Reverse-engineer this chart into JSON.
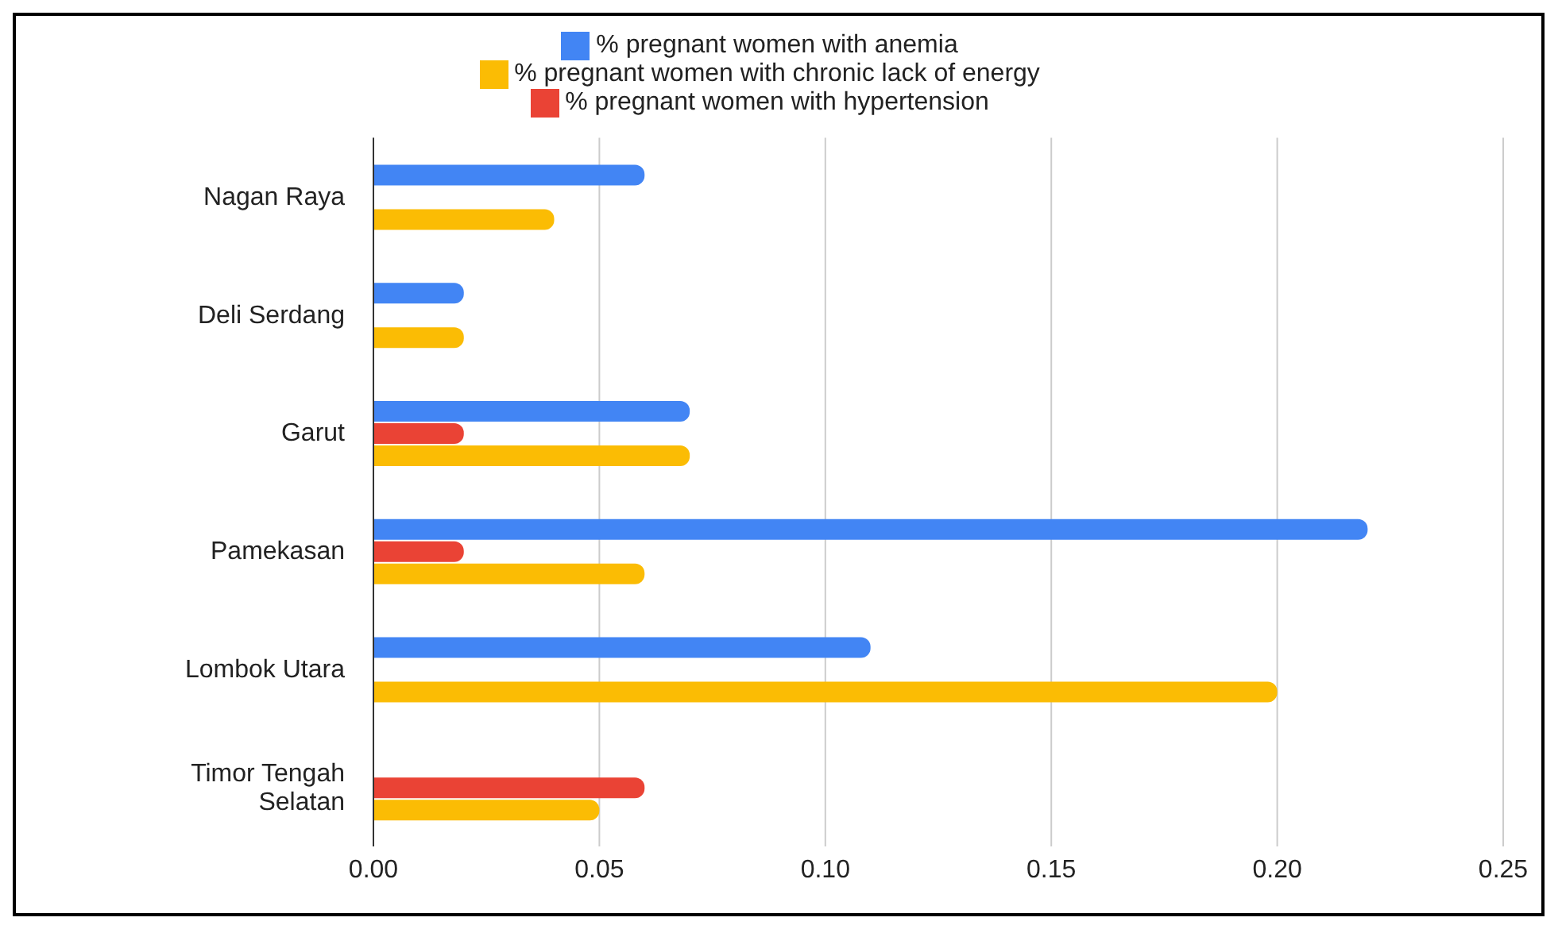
{
  "chart_data": {
    "type": "bar",
    "orientation": "horizontal",
    "categories": [
      "Nagan Raya",
      "Deli Serdang",
      "Garut",
      "Pamekasan",
      "Lombok Utara",
      "Timor Tengah Selatan"
    ],
    "series": [
      {
        "name": "% pregnant women with anemia",
        "color": "#4285f4",
        "values": [
          0.06,
          0.02,
          0.07,
          0.22,
          0.11,
          null
        ]
      },
      {
        "name": "% pregnant women with hypertension",
        "color": "#ea4335",
        "values": [
          null,
          null,
          0.02,
          0.02,
          null,
          0.06
        ]
      },
      {
        "name": "% pregnant women with chronic lack of energy",
        "color": "#fbbc04",
        "values": [
          0.04,
          0.02,
          0.07,
          0.06,
          0.2,
          0.05
        ]
      }
    ],
    "xlim": [
      0,
      0.25
    ],
    "xticks": [
      {
        "value": 0,
        "label": "0.00"
      },
      {
        "value": 0.05,
        "label": "0.05"
      },
      {
        "value": 0.1,
        "label": "0.10"
      },
      {
        "value": 0.15,
        "label": "0.15"
      },
      {
        "value": 0.2,
        "label": "0.20"
      },
      {
        "value": 0.25,
        "label": "0.25"
      }
    ],
    "grid": "x",
    "legend": "top"
  }
}
